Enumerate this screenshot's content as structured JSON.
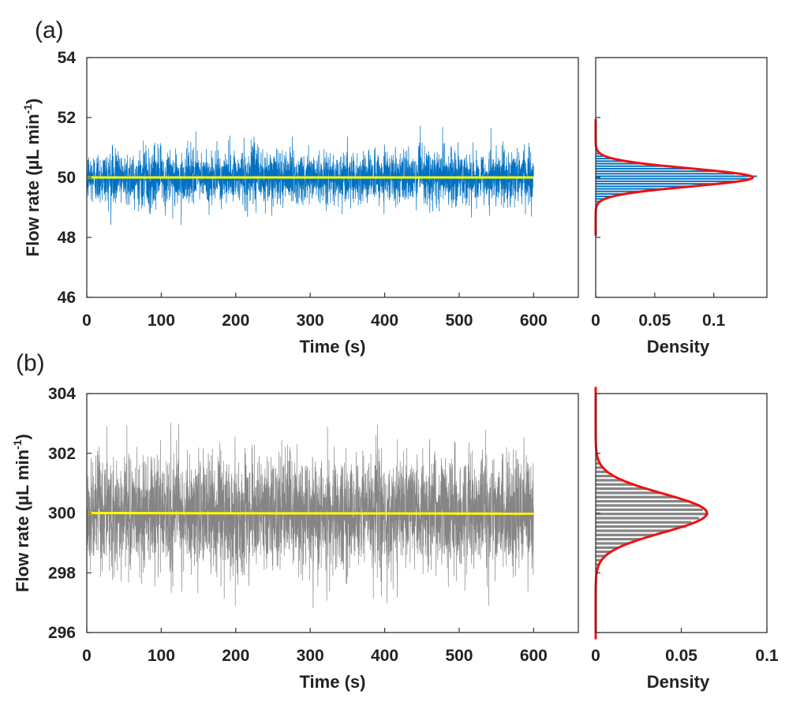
{
  "colors": {
    "series_a": "#0071C2",
    "series_b": "#858585",
    "mean_line": "#FFFF00",
    "fit_curve": "#EE1111",
    "axis": "#333333"
  },
  "chart_data": [
    {
      "type": "line",
      "panel_label": "(a)",
      "xlabel": "Time (s)",
      "ylabel": "Flow rate (µL min",
      "ylabel_sup": "-1",
      "ylabel_close": ")",
      "xlim": [
        0,
        660
      ],
      "ylim": [
        46,
        54
      ],
      "xticks": [
        0,
        100,
        200,
        300,
        400,
        500,
        600
      ],
      "yticks": [
        46,
        48,
        50,
        52,
        54
      ],
      "series": [
        {
          "values_summary": {
            "x_start": 0,
            "x_end": 600,
            "mean": 50.0,
            "min": 48.3,
            "max": 52.1,
            "sd": 0.44
          }
        },
        {
          "x": [
            0,
            600
          ],
          "y": [
            50.0,
            50.0
          ]
        }
      ]
    },
    {
      "type": "bar",
      "orientation": "horizontal",
      "xlabel": "Density",
      "xlim": [
        0,
        0.145
      ],
      "ylim": [
        46,
        54
      ],
      "xticks": [
        0,
        0.05,
        0.1
      ],
      "xtick_labels": [
        "0",
        "0.05",
        "0.1"
      ],
      "fit": {
        "mean": 50.0,
        "sd": 0.3,
        "peak": 0.133
      }
    },
    {
      "type": "line",
      "panel_label": "(b)",
      "xlabel": "Time (s)",
      "ylabel": "Flow rate (µL min",
      "ylabel_sup": "-1",
      "ylabel_close": ")",
      "xlim": [
        0,
        660
      ],
      "ylim": [
        296,
        304
      ],
      "xticks": [
        0,
        100,
        200,
        300,
        400,
        500,
        600
      ],
      "yticks": [
        296,
        298,
        300,
        302,
        304
      ],
      "series": [
        {
          "values_summary": {
            "x_start": 0,
            "x_end": 600,
            "mean": 300.0,
            "min": 296.8,
            "max": 303.1,
            "sd": 0.95
          }
        },
        {
          "x": [
            0,
            600
          ],
          "y": [
            300.0,
            299.98
          ]
        }
      ]
    },
    {
      "type": "bar",
      "orientation": "horizontal",
      "xlabel": "Density",
      "xlim": [
        0,
        0.1
      ],
      "ylim": [
        296,
        304
      ],
      "xticks": [
        0,
        0.05,
        0.1
      ],
      "xtick_labels": [
        "0",
        "0.05",
        "0.1"
      ],
      "fit": {
        "mean": 300.0,
        "sd": 0.65,
        "peak": 0.065
      }
    }
  ]
}
